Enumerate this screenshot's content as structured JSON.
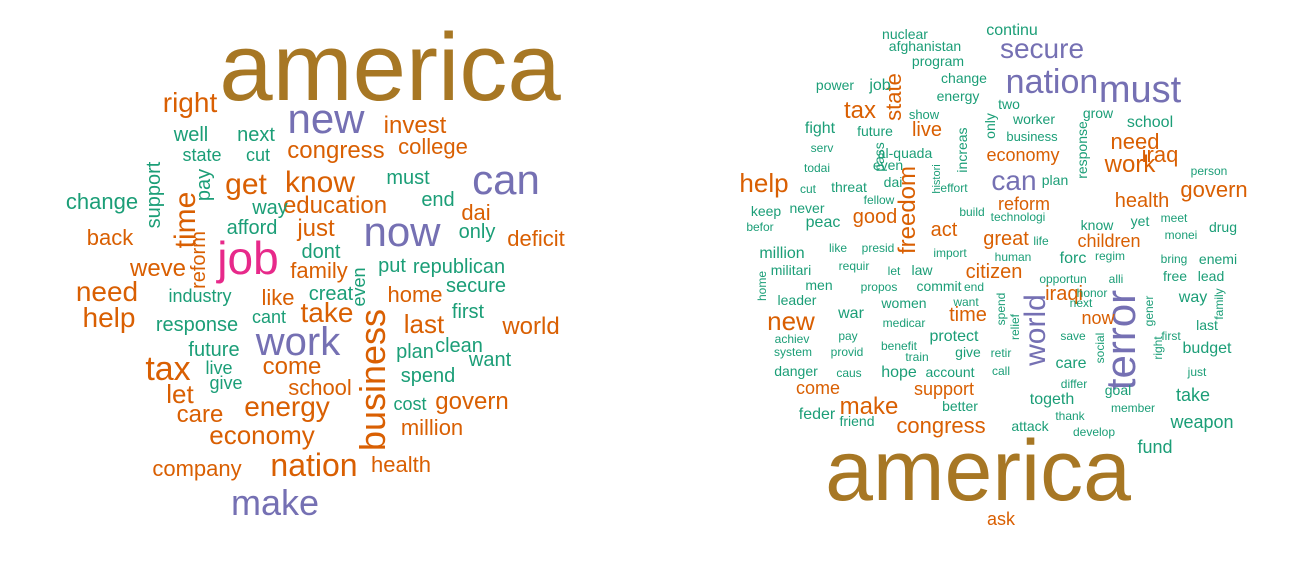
{
  "colors": {
    "brown": "#A77724",
    "purple": "#7570B3",
    "orange": "#D95F02",
    "teal": "#1B9E77",
    "pink": "#E7298A"
  },
  "clouds": [
    {
      "name": "left",
      "words": [
        {
          "text": "america",
          "color": "brown"
        },
        {
          "text": "new",
          "color": "purple"
        },
        {
          "text": "can",
          "color": "purple"
        },
        {
          "text": "now",
          "color": "purple"
        },
        {
          "text": "work",
          "color": "purple"
        },
        {
          "text": "make",
          "color": "purple"
        },
        {
          "text": "job",
          "color": "pink"
        },
        {
          "text": "right",
          "color": "orange"
        },
        {
          "text": "invest",
          "color": "orange"
        },
        {
          "text": "congress",
          "color": "orange"
        },
        {
          "text": "college",
          "color": "orange"
        },
        {
          "text": "get",
          "color": "orange"
        },
        {
          "text": "know",
          "color": "orange"
        },
        {
          "text": "time",
          "color": "orange"
        },
        {
          "text": "education",
          "color": "orange"
        },
        {
          "text": "dai",
          "color": "orange"
        },
        {
          "text": "deficit",
          "color": "orange"
        },
        {
          "text": "back",
          "color": "orange"
        },
        {
          "text": "weve",
          "color": "orange"
        },
        {
          "text": "just",
          "color": "orange"
        },
        {
          "text": "family",
          "color": "orange"
        },
        {
          "text": "need",
          "color": "orange"
        },
        {
          "text": "help",
          "color": "orange"
        },
        {
          "text": "like",
          "color": "orange"
        },
        {
          "text": "take",
          "color": "orange"
        },
        {
          "text": "home",
          "color": "orange"
        },
        {
          "text": "last",
          "color": "orange"
        },
        {
          "text": "world",
          "color": "orange"
        },
        {
          "text": "business",
          "color": "orange"
        },
        {
          "text": "tax",
          "color": "orange"
        },
        {
          "text": "let",
          "color": "orange"
        },
        {
          "text": "come",
          "color": "orange"
        },
        {
          "text": "care",
          "color": "orange"
        },
        {
          "text": "energy",
          "color": "orange"
        },
        {
          "text": "school",
          "color": "orange"
        },
        {
          "text": "govern",
          "color": "orange"
        },
        {
          "text": "million",
          "color": "orange"
        },
        {
          "text": "economy",
          "color": "orange"
        },
        {
          "text": "company",
          "color": "orange"
        },
        {
          "text": "nation",
          "color": "orange"
        },
        {
          "text": "health",
          "color": "orange"
        },
        {
          "text": "reform",
          "color": "orange"
        },
        {
          "text": "well",
          "color": "teal"
        },
        {
          "text": "next",
          "color": "teal"
        },
        {
          "text": "state",
          "color": "teal"
        },
        {
          "text": "cut",
          "color": "teal"
        },
        {
          "text": "change",
          "color": "teal"
        },
        {
          "text": "support",
          "color": "teal"
        },
        {
          "text": "pay",
          "color": "teal"
        },
        {
          "text": "must",
          "color": "teal"
        },
        {
          "text": "end",
          "color": "teal"
        },
        {
          "text": "way",
          "color": "teal"
        },
        {
          "text": "afford",
          "color": "teal"
        },
        {
          "text": "only",
          "color": "teal"
        },
        {
          "text": "dont",
          "color": "teal"
        },
        {
          "text": "put",
          "color": "teal"
        },
        {
          "text": "republican",
          "color": "teal"
        },
        {
          "text": "industry",
          "color": "teal"
        },
        {
          "text": "creat",
          "color": "teal"
        },
        {
          "text": "even",
          "color": "teal"
        },
        {
          "text": "secure",
          "color": "teal"
        },
        {
          "text": "cant",
          "color": "teal"
        },
        {
          "text": "first",
          "color": "teal"
        },
        {
          "text": "response",
          "color": "teal"
        },
        {
          "text": "future",
          "color": "teal"
        },
        {
          "text": "plan",
          "color": "teal"
        },
        {
          "text": "clean",
          "color": "teal"
        },
        {
          "text": "live",
          "color": "teal"
        },
        {
          "text": "want",
          "color": "teal"
        },
        {
          "text": "give",
          "color": "teal"
        },
        {
          "text": "spend",
          "color": "teal"
        },
        {
          "text": "cost",
          "color": "teal"
        }
      ]
    },
    {
      "name": "right",
      "words": [
        {
          "text": "america",
          "color": "brown"
        },
        {
          "text": "nation",
          "color": "purple"
        },
        {
          "text": "must",
          "color": "purple"
        },
        {
          "text": "secure",
          "color": "purple"
        },
        {
          "text": "can",
          "color": "purple"
        },
        {
          "text": "world",
          "color": "purple"
        },
        {
          "text": "terror",
          "color": "purple"
        },
        {
          "text": "state",
          "color": "orange"
        },
        {
          "text": "tax",
          "color": "orange"
        },
        {
          "text": "live",
          "color": "orange"
        },
        {
          "text": "economy",
          "color": "orange"
        },
        {
          "text": "need",
          "color": "orange"
        },
        {
          "text": "iraq",
          "color": "orange"
        },
        {
          "text": "work",
          "color": "orange"
        },
        {
          "text": "help",
          "color": "orange"
        },
        {
          "text": "freedom",
          "color": "orange"
        },
        {
          "text": "health",
          "color": "orange"
        },
        {
          "text": "govern",
          "color": "orange"
        },
        {
          "text": "good",
          "color": "orange"
        },
        {
          "text": "act",
          "color": "orange"
        },
        {
          "text": "reform",
          "color": "orange"
        },
        {
          "text": "great",
          "color": "orange"
        },
        {
          "text": "children",
          "color": "orange"
        },
        {
          "text": "citizen",
          "color": "orange"
        },
        {
          "text": "iraqi",
          "color": "orange"
        },
        {
          "text": "new",
          "color": "orange"
        },
        {
          "text": "time",
          "color": "orange"
        },
        {
          "text": "now",
          "color": "orange"
        },
        {
          "text": "come",
          "color": "orange"
        },
        {
          "text": "support",
          "color": "orange"
        },
        {
          "text": "make",
          "color": "orange"
        },
        {
          "text": "congress",
          "color": "orange"
        },
        {
          "text": "ask",
          "color": "orange"
        },
        {
          "text": "nuclear",
          "color": "teal"
        },
        {
          "text": "continu",
          "color": "teal"
        },
        {
          "text": "afghanistan",
          "color": "teal"
        },
        {
          "text": "program",
          "color": "teal"
        },
        {
          "text": "change",
          "color": "teal"
        },
        {
          "text": "power",
          "color": "teal"
        },
        {
          "text": "job",
          "color": "teal"
        },
        {
          "text": "energy",
          "color": "teal"
        },
        {
          "text": "two",
          "color": "teal"
        },
        {
          "text": "show",
          "color": "teal"
        },
        {
          "text": "grow",
          "color": "teal"
        },
        {
          "text": "school",
          "color": "teal"
        },
        {
          "text": "fight",
          "color": "teal"
        },
        {
          "text": "worker",
          "color": "teal"
        },
        {
          "text": "only",
          "color": "teal"
        },
        {
          "text": "future",
          "color": "teal"
        },
        {
          "text": "business",
          "color": "teal"
        },
        {
          "text": "serv",
          "color": "teal"
        },
        {
          "text": "pass",
          "color": "teal"
        },
        {
          "text": "al-quada",
          "color": "teal"
        },
        {
          "text": "increas",
          "color": "teal"
        },
        {
          "text": "response",
          "color": "teal"
        },
        {
          "text": "todai",
          "color": "teal"
        },
        {
          "text": "even",
          "color": "teal"
        },
        {
          "text": "plan",
          "color": "teal"
        },
        {
          "text": "person",
          "color": "teal"
        },
        {
          "text": "cut",
          "color": "teal"
        },
        {
          "text": "threat",
          "color": "teal"
        },
        {
          "text": "dai",
          "color": "teal"
        },
        {
          "text": "histori",
          "color": "teal"
        },
        {
          "text": "effort",
          "color": "teal"
        },
        {
          "text": "fellow",
          "color": "teal"
        },
        {
          "text": "keep",
          "color": "teal"
        },
        {
          "text": "never",
          "color": "teal"
        },
        {
          "text": "build",
          "color": "teal"
        },
        {
          "text": "technologi",
          "color": "teal"
        },
        {
          "text": "know",
          "color": "teal"
        },
        {
          "text": "yet",
          "color": "teal"
        },
        {
          "text": "meet",
          "color": "teal"
        },
        {
          "text": "drug",
          "color": "teal"
        },
        {
          "text": "befor",
          "color": "teal"
        },
        {
          "text": "peac",
          "color": "teal"
        },
        {
          "text": "monei",
          "color": "teal"
        },
        {
          "text": "million",
          "color": "teal"
        },
        {
          "text": "like",
          "color": "teal"
        },
        {
          "text": "presid",
          "color": "teal"
        },
        {
          "text": "import",
          "color": "teal"
        },
        {
          "text": "life",
          "color": "teal"
        },
        {
          "text": "forc",
          "color": "teal"
        },
        {
          "text": "regim",
          "color": "teal"
        },
        {
          "text": "enemi",
          "color": "teal"
        },
        {
          "text": "militari",
          "color": "teal"
        },
        {
          "text": "requir",
          "color": "teal"
        },
        {
          "text": "let",
          "color": "teal"
        },
        {
          "text": "law",
          "color": "teal"
        },
        {
          "text": "human",
          "color": "teal"
        },
        {
          "text": "bring",
          "color": "teal"
        },
        {
          "text": "free",
          "color": "teal"
        },
        {
          "text": "lead",
          "color": "teal"
        },
        {
          "text": "men",
          "color": "teal"
        },
        {
          "text": "propos",
          "color": "teal"
        },
        {
          "text": "commit",
          "color": "teal"
        },
        {
          "text": "end",
          "color": "teal"
        },
        {
          "text": "opportun",
          "color": "teal"
        },
        {
          "text": "alli",
          "color": "teal"
        },
        {
          "text": "honor",
          "color": "teal"
        },
        {
          "text": "home",
          "color": "teal"
        },
        {
          "text": "leader",
          "color": "teal"
        },
        {
          "text": "war",
          "color": "teal"
        },
        {
          "text": "women",
          "color": "teal"
        },
        {
          "text": "want",
          "color": "teal"
        },
        {
          "text": "spend",
          "color": "teal"
        },
        {
          "text": "next",
          "color": "teal"
        },
        {
          "text": "way",
          "color": "teal"
        },
        {
          "text": "family",
          "color": "teal"
        },
        {
          "text": "gener",
          "color": "teal"
        },
        {
          "text": "achiev",
          "color": "teal"
        },
        {
          "text": "pay",
          "color": "teal"
        },
        {
          "text": "medicar",
          "color": "teal"
        },
        {
          "text": "relief",
          "color": "teal"
        },
        {
          "text": "first",
          "color": "teal"
        },
        {
          "text": "last",
          "color": "teal"
        },
        {
          "text": "system",
          "color": "teal"
        },
        {
          "text": "provid",
          "color": "teal"
        },
        {
          "text": "benefit",
          "color": "teal"
        },
        {
          "text": "protect",
          "color": "teal"
        },
        {
          "text": "save",
          "color": "teal"
        },
        {
          "text": "right",
          "color": "teal"
        },
        {
          "text": "train",
          "color": "teal"
        },
        {
          "text": "give",
          "color": "teal"
        },
        {
          "text": "retir",
          "color": "teal"
        },
        {
          "text": "social",
          "color": "teal"
        },
        {
          "text": "care",
          "color": "teal"
        },
        {
          "text": "budget",
          "color": "teal"
        },
        {
          "text": "danger",
          "color": "teal"
        },
        {
          "text": "caus",
          "color": "teal"
        },
        {
          "text": "hope",
          "color": "teal"
        },
        {
          "text": "account",
          "color": "teal"
        },
        {
          "text": "call",
          "color": "teal"
        },
        {
          "text": "differ",
          "color": "teal"
        },
        {
          "text": "just",
          "color": "teal"
        },
        {
          "text": "goal",
          "color": "teal"
        },
        {
          "text": "take",
          "color": "teal"
        },
        {
          "text": "togeth",
          "color": "teal"
        },
        {
          "text": "member",
          "color": "teal"
        },
        {
          "text": "feder",
          "color": "teal"
        },
        {
          "text": "better",
          "color": "teal"
        },
        {
          "text": "friend",
          "color": "teal"
        },
        {
          "text": "attack",
          "color": "teal"
        },
        {
          "text": "thank",
          "color": "teal"
        },
        {
          "text": "weapon",
          "color": "teal"
        },
        {
          "text": "develop",
          "color": "teal"
        },
        {
          "text": "fund",
          "color": "teal"
        }
      ]
    }
  ]
}
